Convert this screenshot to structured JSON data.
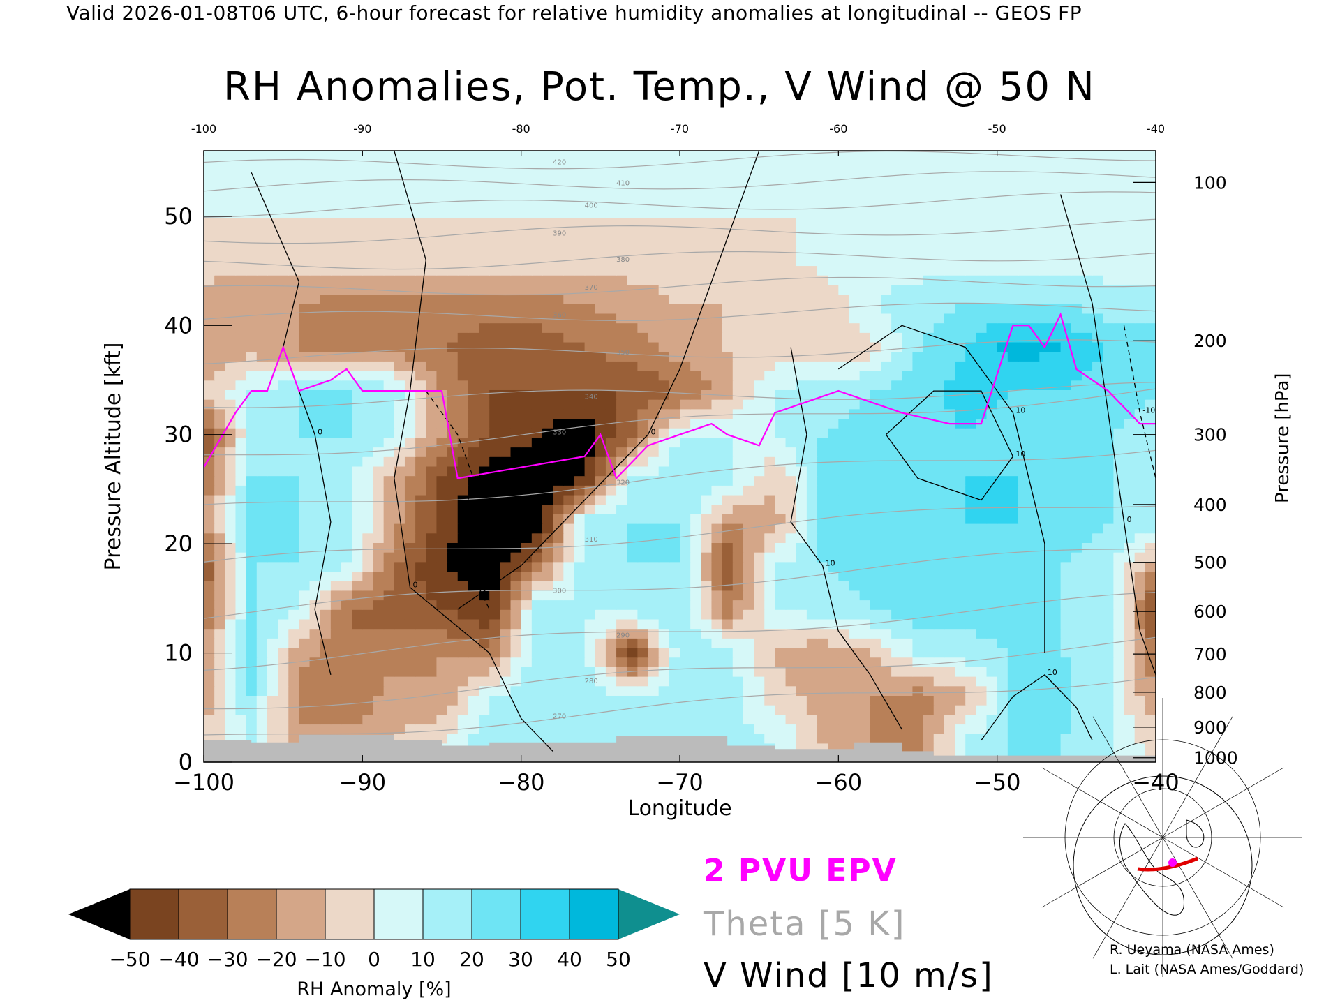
{
  "header": {
    "valid_line": "Valid 2026-01-08T06 UTC, 6-hour forecast for relative humidity anomalies at longitudinal -- GEOS FP"
  },
  "chart_data": {
    "type": "heatmap",
    "title": "RH Anomalies, Pot. Temp., V Wind @ 50 N",
    "xlabel": "Longitude",
    "ylabel_left": "Pressure Altitude [kft]",
    "ylabel_right": "Pressure [hPa]",
    "xlim": [
      -100,
      -40
    ],
    "ylim_kft": [
      0,
      56
    ],
    "x_ticks": [
      -100,
      -90,
      -80,
      -70,
      -60,
      -50,
      -40
    ],
    "x_tick_labels": [
      "−100",
      "−90",
      "−80",
      "−70",
      "−60",
      "−50",
      "−40"
    ],
    "x_top_tick_labels": [
      "-100",
      "-90",
      "-80",
      "-70",
      "-60",
      "-50",
      "-40"
    ],
    "y_ticks_kft": [
      0,
      10,
      20,
      30,
      40,
      50
    ],
    "y_ticks_hpa": [
      {
        "label": "100",
        "kft": 53.1
      },
      {
        "label": "200",
        "kft": 38.6
      },
      {
        "label": "300",
        "kft": 30.0
      },
      {
        "label": "400",
        "kft": 23.6
      },
      {
        "label": "500",
        "kft": 18.3
      },
      {
        "label": "600",
        "kft": 13.8
      },
      {
        "label": "700",
        "kft": 9.9
      },
      {
        "label": "800",
        "kft": 6.4
      },
      {
        "label": "900",
        "kft": 3.2
      },
      {
        "label": "1000",
        "kft": 0.4
      }
    ],
    "colorbar": {
      "label": "RH Anomaly [%]",
      "ticks": [
        -50,
        -40,
        -30,
        -20,
        -10,
        0,
        10,
        20,
        30,
        40,
        50
      ],
      "tick_labels": [
        "−50",
        "−40",
        "−30",
        "−20",
        "−10",
        "0",
        "10",
        "20",
        "30",
        "40",
        "50"
      ],
      "colors": [
        "#5a2e10",
        "#7a4420",
        "#9a6038",
        "#b88058",
        "#d4a688",
        "#ecd8c8",
        "#d6f8f8",
        "#a6f0f8",
        "#6ee4f4",
        "#30d4f0",
        "#00b8dc",
        "#0090b4"
      ],
      "under_color": "#000000",
      "over_color": "#0f8f8f"
    },
    "rh_anomaly_field": {
      "x": [
        -100,
        -97,
        -94,
        -91,
        -88,
        -85,
        -82,
        -79,
        -76,
        -73,
        -70,
        -67,
        -64,
        -61,
        -58,
        -55,
        -52,
        -49,
        -46,
        -43,
        -40
      ],
      "y_kft": [
        2,
        6,
        10,
        14,
        18,
        22,
        26,
        30,
        34,
        38,
        42,
        46,
        50,
        55
      ],
      "values": [
        [
          -10,
          10,
          -15,
          -15,
          -10,
          0,
          20,
          15,
          10,
          20,
          20,
          15,
          10,
          -10,
          -20,
          -25,
          10,
          20,
          20,
          10,
          -5
        ],
        [
          -15,
          20,
          -25,
          -30,
          -15,
          -20,
          10,
          20,
          15,
          10,
          20,
          15,
          -5,
          -15,
          -20,
          -25,
          -15,
          20,
          25,
          10,
          -20
        ],
        [
          -20,
          25,
          -15,
          -30,
          -25,
          -20,
          -25,
          15,
          15,
          -45,
          15,
          15,
          -10,
          -20,
          -10,
          10,
          15,
          20,
          20,
          15,
          -30
        ],
        [
          -30,
          20,
          10,
          -30,
          -35,
          -40,
          -50,
          15,
          10,
          15,
          20,
          -25,
          10,
          15,
          20,
          25,
          25,
          25,
          20,
          20,
          -45
        ],
        [
          -40,
          20,
          20,
          10,
          -30,
          -50,
          -60,
          -30,
          15,
          20,
          20,
          -40,
          10,
          20,
          25,
          25,
          25,
          25,
          20,
          15,
          -20
        ],
        [
          -20,
          25,
          20,
          15,
          -15,
          -45,
          -60,
          -60,
          15,
          20,
          20,
          -20,
          -15,
          20,
          25,
          25,
          30,
          30,
          25,
          20,
          15
        ],
        [
          -30,
          20,
          20,
          15,
          -15,
          -40,
          -60,
          -60,
          -50,
          10,
          20,
          15,
          -10,
          20,
          25,
          30,
          30,
          30,
          25,
          20,
          20
        ],
        [
          -40,
          10,
          20,
          20,
          10,
          -20,
          -40,
          -50,
          -60,
          -30,
          10,
          10,
          10,
          20,
          25,
          25,
          30,
          25,
          25,
          20,
          15
        ],
        [
          -10,
          10,
          20,
          20,
          15,
          -20,
          -40,
          -40,
          -40,
          -40,
          -30,
          -15,
          10,
          15,
          20,
          25,
          35,
          30,
          30,
          25,
          20
        ],
        [
          -15,
          -15,
          -20,
          -20,
          -25,
          -30,
          -35,
          -35,
          -30,
          -25,
          -15,
          -10,
          -5,
          -5,
          -5,
          20,
          30,
          45,
          40,
          30,
          25
        ],
        [
          -15,
          -20,
          -20,
          -25,
          -25,
          -25,
          -25,
          -25,
          -20,
          -15,
          -10,
          -10,
          -10,
          -10,
          10,
          15,
          20,
          20,
          20,
          15,
          15
        ],
        [
          -5,
          -5,
          -5,
          -5,
          -5,
          -5,
          -5,
          -5,
          -5,
          -5,
          -5,
          -5,
          -5,
          5,
          5,
          5,
          5,
          5,
          5,
          5,
          5
        ],
        [
          0,
          0,
          0,
          0,
          0,
          0,
          0,
          0,
          0,
          0,
          0,
          0,
          0,
          0,
          0,
          0,
          0,
          0,
          0,
          0,
          0
        ],
        [
          0,
          0,
          0,
          0,
          0,
          0,
          0,
          0,
          0,
          0,
          0,
          0,
          0,
          0,
          0,
          0,
          0,
          0,
          0,
          0,
          0
        ]
      ]
    },
    "theta_contours": {
      "interval_K": 5,
      "color": "#a8a8a8",
      "labels": [
        "270",
        "280",
        "290",
        "300",
        "310",
        "320",
        "330",
        "340",
        "350",
        "360",
        "370",
        "380",
        "390",
        "400",
        "410",
        "420"
      ]
    },
    "pvu_2_line": {
      "color": "#ff00ff",
      "points": [
        [
          -100,
          27
        ],
        [
          -98,
          32
        ],
        [
          -97,
          34
        ],
        [
          -96,
          34
        ],
        [
          -95,
          38
        ],
        [
          -94,
          34
        ],
        [
          -92,
          35
        ],
        [
          -91,
          36
        ],
        [
          -90,
          34
        ],
        [
          -87,
          34
        ],
        [
          -85,
          34
        ],
        [
          -84,
          26
        ],
        [
          -80,
          27
        ],
        [
          -76,
          28
        ],
        [
          -75,
          30
        ],
        [
          -74,
          26
        ],
        [
          -72,
          29
        ],
        [
          -70,
          30
        ],
        [
          -68,
          31
        ],
        [
          -67,
          30
        ],
        [
          -65,
          29
        ],
        [
          -64,
          32
        ],
        [
          -62,
          33
        ],
        [
          -60,
          34
        ],
        [
          -58,
          33
        ],
        [
          -56,
          32
        ],
        [
          -53,
          31
        ],
        [
          -51,
          31
        ],
        [
          -49,
          40
        ],
        [
          -48,
          40
        ],
        [
          -47,
          38
        ],
        [
          -46,
          41
        ],
        [
          -45,
          36
        ],
        [
          -43,
          34
        ],
        [
          -41,
          31
        ],
        [
          -40,
          31
        ]
      ]
    },
    "v_wind_contours": {
      "interval_ms": 10,
      "color": "#000000",
      "labels": [
        "0",
        "10",
        "-10"
      ]
    },
    "topography_color": "#bbbbbb"
  },
  "legend": {
    "pvu_label": "2 PVU EPV",
    "theta_label": "Theta [5 K]",
    "wind_label": "V Wind [10 m/s]",
    "pvu_color": "#ff00ff",
    "theta_color": "#a8a8a8"
  },
  "credits": {
    "line1": "R. Ueyama (NASA Ames)",
    "line2": "L. Lait (NASA Ames/Goddard)"
  }
}
